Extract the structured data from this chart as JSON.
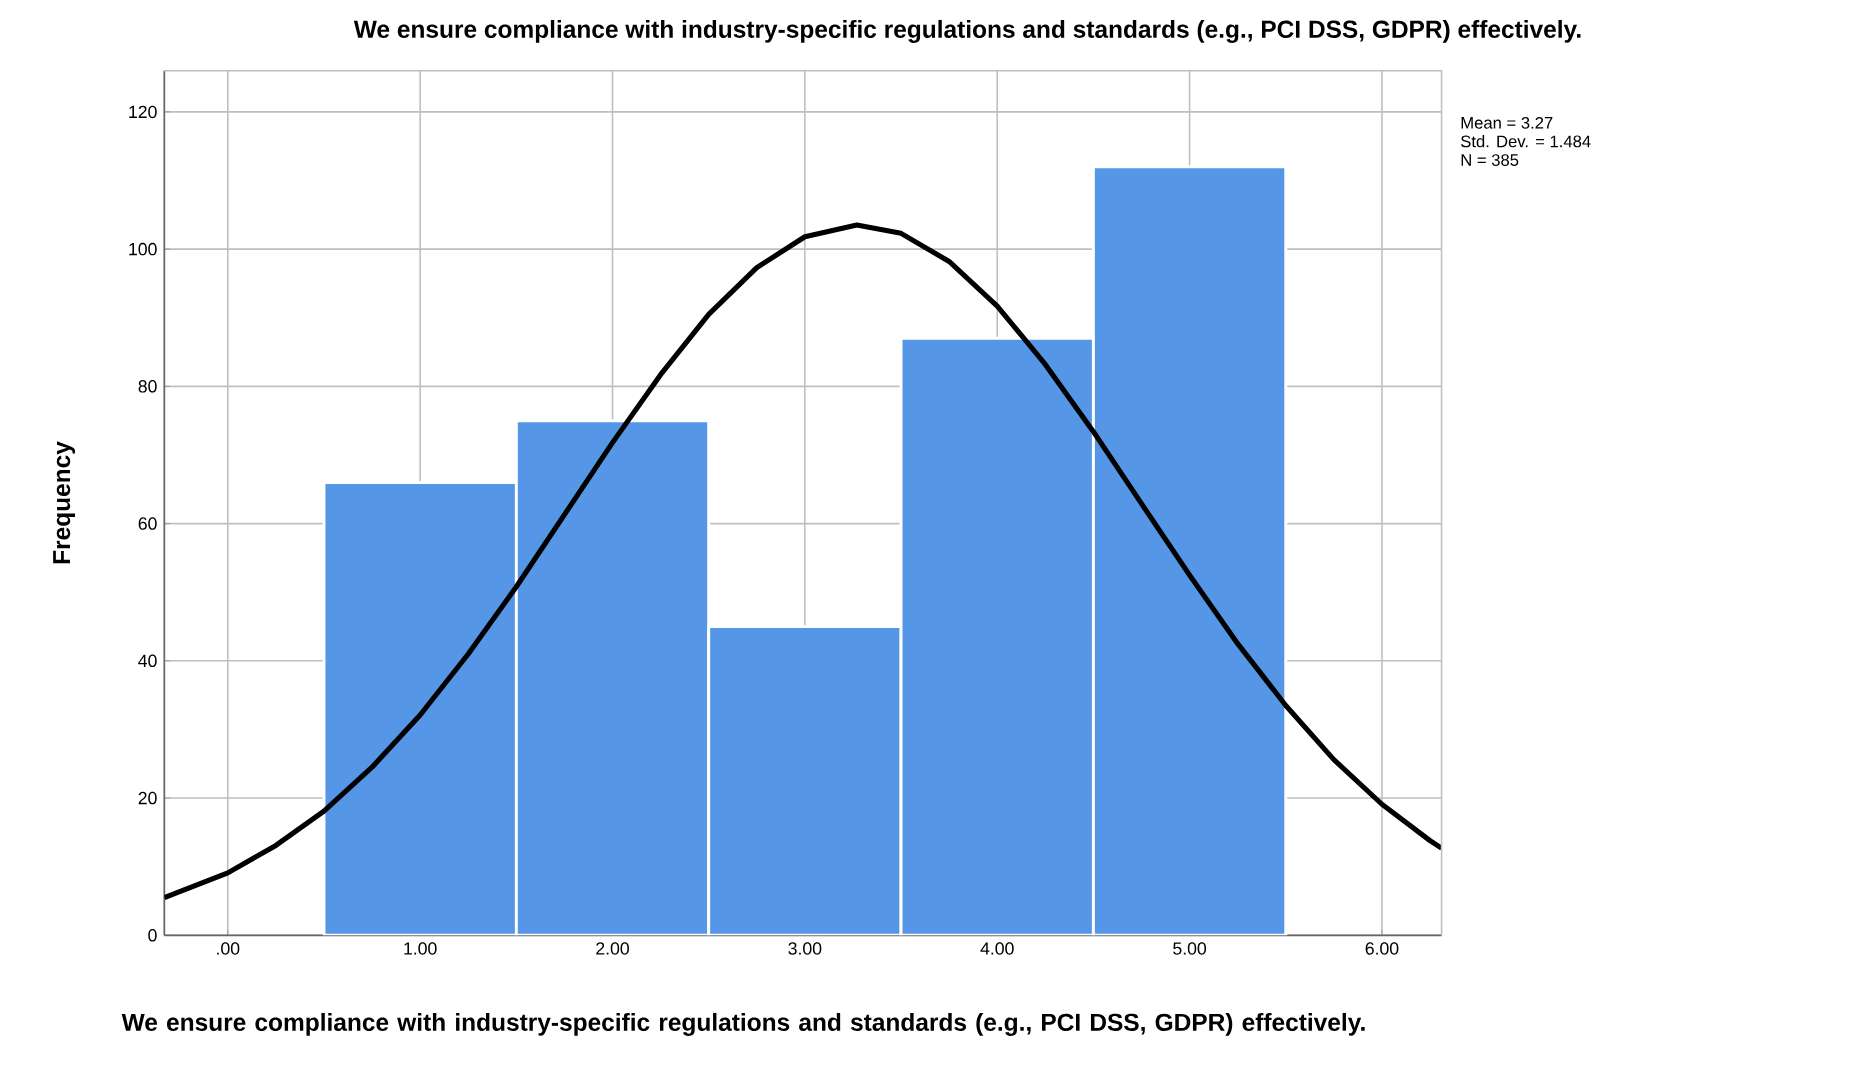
{
  "chart_data": {
    "type": "histogram",
    "title": "We ensure compliance with industry-specific regulations and standards (e.g., PCI DSS, GDPR) effectively.",
    "xlabel": "We ensure compliance with industry-specific regulations and standards (e.g., PCI DSS, GDPR) effectively.",
    "ylabel": "Frequency",
    "annotations": [
      "Mean = 3.27",
      "Std. Dev. = 1.484",
      "N = 385"
    ],
    "bins": [
      0.5,
      1.5,
      2.5,
      3.5,
      4.5,
      5.5
    ],
    "values": [
      66,
      75,
      45,
      87,
      112
    ],
    "color": "#5596e6",
    "series": [
      {
        "type": "line",
        "color": "#000000",
        "x": [
          -0.33,
          0,
          0.25,
          0.5,
          0.75,
          1,
          1.25,
          1.5,
          1.75,
          2,
          2.25,
          2.5,
          2.75,
          3,
          3.27,
          3.5,
          3.75,
          4,
          4.25,
          4.5,
          4.75,
          5,
          5.25,
          5.5,
          5.75,
          6,
          6.25,
          6.31
        ],
        "values": [
          5.5,
          9.1,
          13.1,
          18.1,
          24.5,
          32.1,
          41.0,
          50.8,
          61.3,
          71.8,
          81.7,
          90.5,
          97.3,
          101.8,
          103.5,
          102.3,
          98.2,
          91.7,
          83.2,
          73.4,
          62.9,
          52.5,
          42.5,
          33.5,
          25.6,
          19.1,
          13.8,
          12.7
        ]
      }
    ],
    "xlim": [
      -0.33,
      6.31
    ],
    "ylim": [
      0,
      126
    ],
    "xticks": [
      {
        "value": 0,
        "label": ".00"
      },
      {
        "value": 1,
        "label": "1.00"
      },
      {
        "value": 2,
        "label": "2.00"
      },
      {
        "value": 3,
        "label": "3.00"
      },
      {
        "value": 4,
        "label": "4.00"
      },
      {
        "value": 5,
        "label": "5.00"
      },
      {
        "value": 6,
        "label": "6.00"
      }
    ],
    "yticks": [
      0,
      20,
      40,
      60,
      80,
      100,
      120
    ],
    "grid": true,
    "marker": "none",
    "line_style": "solid"
  }
}
